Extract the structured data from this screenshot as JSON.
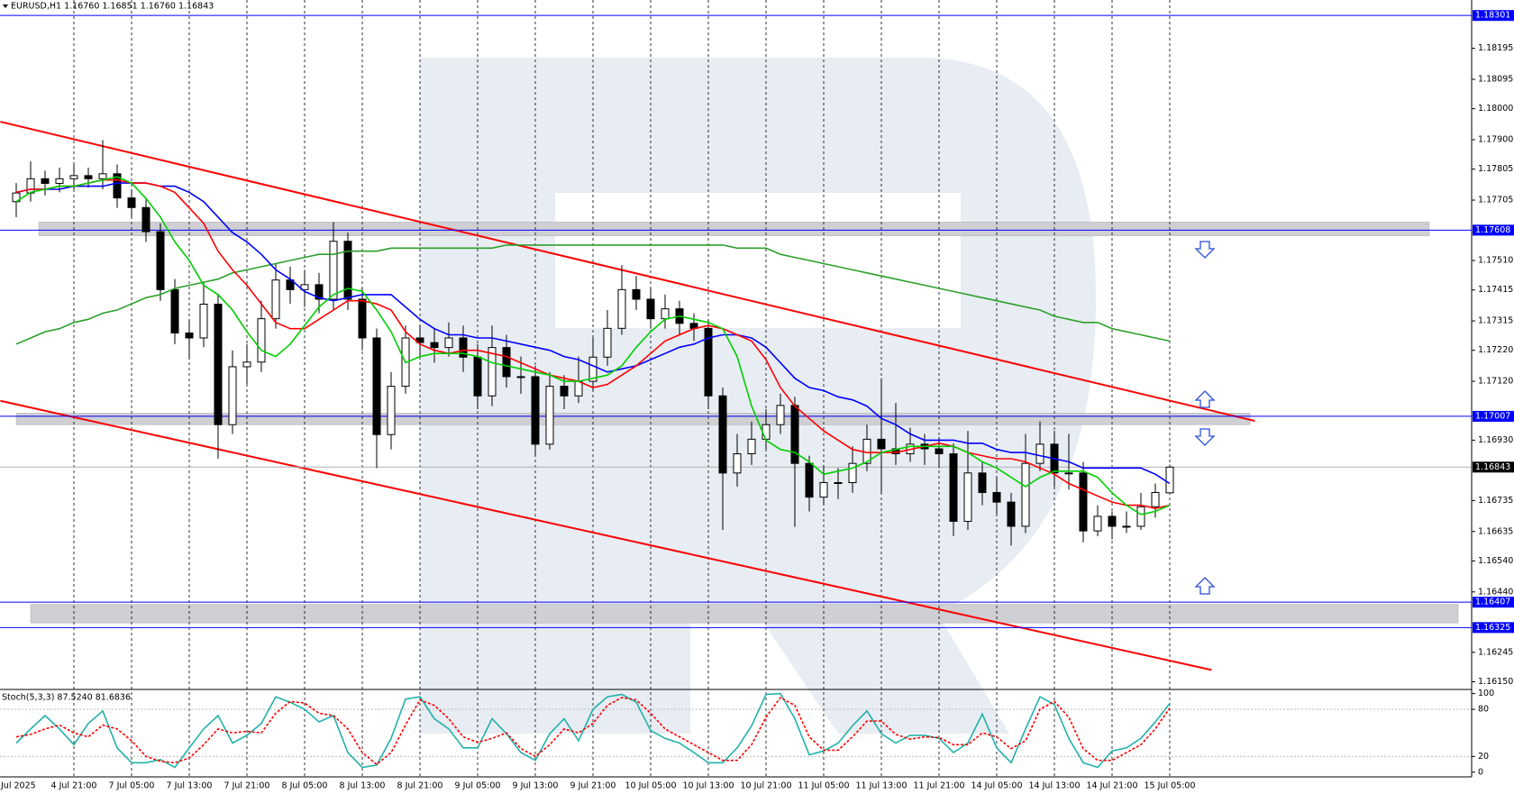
{
  "chart_data": [
    {
      "type": "candlestick",
      "title": "EURUSD,H1 1.16760 1.16851 1.16760 1.16843",
      "categories": [
        "Jul 2025",
        null,
        null,
        null,
        "4 Jul 21:00",
        null,
        null,
        null,
        "7 Jul 05:00",
        null,
        null,
        null,
        "7 Jul 13:00",
        null,
        null,
        null,
        "7 Jul 21:00",
        null,
        null,
        null,
        "8 Jul 05:00",
        null,
        null,
        null,
        "8 Jul 13:00",
        null,
        null,
        null,
        "8 Jul 21:00",
        null,
        null,
        null,
        "9 Jul 05:00",
        null,
        null,
        null,
        "9 Jul 13:00",
        null,
        null,
        null,
        "9 Jul 21:00",
        null,
        null,
        null,
        "10 Jul 05:00",
        null,
        null,
        null,
        "10 Jul 13:00",
        null,
        null,
        null,
        "10 Jul 21:00",
        null,
        null,
        null,
        "11 Jul 05:00",
        null,
        null,
        null,
        "11 Jul 13:00",
        null,
        null,
        null,
        "11 Jul 21:00",
        null,
        null,
        null,
        "14 Jul 05:00",
        null,
        null,
        null,
        "14 Jul 13:00",
        null,
        null,
        null,
        "14 Jul 21:00",
        null,
        null,
        null,
        "15 Jul 05:00"
      ],
      "open": [
        1.177,
        1.17728,
        1.17774,
        1.17759,
        1.17774,
        1.17784,
        1.17774,
        1.1779,
        1.17712,
        1.17681,
        1.17603,
        1.17416,
        1.17276,
        1.1726,
        1.17369,
        1.1698,
        1.17167,
        1.17182,
        1.17322,
        1.17447,
        1.17416,
        1.17432,
        1.17385,
        1.17572,
        1.17385,
        1.1726,
        1.16948,
        1.17104,
        1.1726,
        1.17245,
        1.17229,
        1.1726,
        1.17198,
        1.17073,
        1.17229,
        1.17135,
        1.17135,
        1.16917,
        1.17104,
        1.17073,
        1.1712,
        1.17198,
        1.17291,
        1.17416,
        1.17385,
        1.17322,
        1.17354,
        1.17307,
        1.17291,
        1.17073,
        1.16824,
        1.16886,
        1.16933,
        1.1698,
        1.17042,
        1.16855,
        1.16746,
        1.16793,
        1.16793,
        1.16855,
        1.16933,
        1.16902,
        1.16886,
        1.16917,
        1.16902,
        1.16886,
        1.16668,
        1.16824,
        1.16761,
        1.1673,
        1.16652,
        1.16855,
        1.16917,
        1.16824,
        1.16824,
        1.16637,
        1.16684,
        1.16652,
        1.16652,
        1.16715,
        1.1676
      ],
      "high": [
        1.1776,
        1.1783,
        1.178,
        1.1781,
        1.1782,
        1.1781,
        1.17899,
        1.1782,
        1.1774,
        1.1771,
        1.1763,
        1.1745,
        1.1732,
        1.1744,
        1.174,
        1.1722,
        1.1724,
        1.1738,
        1.175,
        1.1749,
        1.1748,
        1.1747,
        1.17634,
        1.176,
        1.1742,
        1.1729,
        1.1715,
        1.173,
        1.173,
        1.1729,
        1.1731,
        1.173,
        1.1724,
        1.173,
        1.1727,
        1.172,
        1.1717,
        1.1715,
        1.1714,
        1.172,
        1.1726,
        1.1735,
        1.17495,
        1.1746,
        1.1742,
        1.174,
        1.1738,
        1.1734,
        1.1732,
        1.171,
        1.1695,
        1.1699,
        1.1703,
        1.1708,
        1.1707,
        1.1688,
        1.1685,
        1.1684,
        1.1691,
        1.1698,
        1.1713,
        1.1705,
        1.1697,
        1.1695,
        1.1694,
        1.1692,
        1.1696,
        1.1686,
        1.1681,
        1.1676,
        1.1695,
        1.1699,
        1.1696,
        1.1695,
        1.1686,
        1.1672,
        1.167,
        1.167,
        1.1676,
        1.1679,
        1.16851
      ],
      "low": [
        1.1765,
        1.177,
        1.1772,
        1.1773,
        1.1774,
        1.17745,
        1.1774,
        1.1768,
        1.1765,
        1.1757,
        1.1738,
        1.1724,
        1.1719,
        1.1723,
        1.1687,
        1.1695,
        1.1711,
        1.1715,
        1.1729,
        1.1737,
        1.1736,
        1.1734,
        1.1735,
        1.1735,
        1.1722,
        1.1684,
        1.169,
        1.1708,
        1.172,
        1.1718,
        1.172,
        1.1715,
        1.1703,
        1.1704,
        1.171,
        1.1708,
        1.1688,
        1.169,
        1.1703,
        1.1705,
        1.1709,
        1.1717,
        1.1727,
        1.1735,
        1.1729,
        1.1729,
        1.1727,
        1.1725,
        1.1703,
        1.1664,
        1.1678,
        1.1685,
        1.169,
        1.1695,
        1.1665,
        1.167,
        1.1672,
        1.1674,
        1.1676,
        1.1683,
        1.1676,
        1.1685,
        1.1686,
        1.1685,
        1.1684,
        1.1662,
        1.1664,
        1.1672,
        1.1669,
        1.1659,
        1.1663,
        1.1683,
        1.1678,
        1.1677,
        1.166,
        1.1662,
        1.1661,
        1.1663,
        1.1664,
        1.1668,
        1.1676
      ],
      "close": [
        1.17728,
        1.17774,
        1.17759,
        1.17774,
        1.17784,
        1.17774,
        1.1779,
        1.17712,
        1.17681,
        1.17603,
        1.17416,
        1.17276,
        1.1726,
        1.17369,
        1.1698,
        1.17167,
        1.17182,
        1.17322,
        1.17447,
        1.17416,
        1.17432,
        1.17385,
        1.17572,
        1.17385,
        1.1726,
        1.16948,
        1.17104,
        1.1726,
        1.17245,
        1.17229,
        1.1726,
        1.17198,
        1.17073,
        1.17229,
        1.17135,
        1.17135,
        1.16917,
        1.17104,
        1.17073,
        1.1712,
        1.17198,
        1.17291,
        1.17416,
        1.17385,
        1.17322,
        1.17354,
        1.17307,
        1.17291,
        1.17073,
        1.16824,
        1.16886,
        1.16933,
        1.1698,
        1.17042,
        1.16855,
        1.16746,
        1.16793,
        1.16793,
        1.16855,
        1.16933,
        1.16902,
        1.16886,
        1.16917,
        1.16902,
        1.16886,
        1.16668,
        1.16824,
        1.16761,
        1.1673,
        1.16652,
        1.16855,
        1.16917,
        1.16824,
        1.16824,
        1.16637,
        1.16684,
        1.16652,
        1.16652,
        1.16715,
        1.16761,
        1.16843
      ],
      "up_color": "#ffffff",
      "down_color": "#000000",
      "moving_averages": [
        {
          "color": "#2ca02c",
          "values": [
            1.1724,
            1.1726,
            1.1728,
            1.1729,
            1.1731,
            1.1732,
            1.1734,
            1.1735,
            1.1737,
            1.1739,
            1.174,
            1.1742,
            1.1743,
            1.1744,
            1.1745,
            1.1747,
            1.1748,
            1.1749,
            1.175,
            1.1751,
            1.1752,
            1.1753,
            1.1753,
            1.1754,
            1.1754,
            1.1754,
            1.1755,
            1.1755,
            1.1755,
            1.1755,
            1.1755,
            1.1755,
            1.1755,
            1.1755,
            1.1756,
            1.1756,
            1.1756,
            1.1756,
            1.1756,
            1.1756,
            1.1756,
            1.1756,
            1.1756,
            1.1756,
            1.1756,
            1.1756,
            1.1756,
            1.1756,
            1.1756,
            1.1756,
            1.1755,
            1.1755,
            1.1755,
            1.1753,
            1.1752,
            1.1751,
            1.175,
            1.1749,
            1.1748,
            1.1747,
            1.1746,
            1.1745,
            1.1744,
            1.1743,
            1.1742,
            1.1741,
            1.174,
            1.1739,
            1.1738,
            1.1737,
            1.1736,
            1.1735,
            1.1733,
            1.1732,
            1.1731,
            1.1731,
            1.1729,
            1.1728,
            1.1727,
            1.1726,
            1.1725
          ]
        },
        {
          "color": "#0000ff",
          "values": [
            1.1773,
            1.1774,
            1.1774,
            1.1774,
            1.1775,
            1.1775,
            1.1775,
            1.1776,
            1.1776,
            1.1776,
            1.1775,
            1.1775,
            1.1773,
            1.177,
            1.1765,
            1.176,
            1.1757,
            1.1753,
            1.1748,
            1.1745,
            1.1741,
            1.1739,
            1.1738,
            1.1739,
            1.174,
            1.174,
            1.174,
            1.1736,
            1.1732,
            1.1729,
            1.1727,
            1.1727,
            1.1726,
            1.1726,
            1.1725,
            1.1724,
            1.1723,
            1.1722,
            1.172,
            1.1719,
            1.1717,
            1.1715,
            1.1716,
            1.1717,
            1.1719,
            1.1721,
            1.1723,
            1.1724,
            1.1726,
            1.1727,
            1.1727,
            1.1726,
            1.1723,
            1.1718,
            1.1713,
            1.171,
            1.1709,
            1.1707,
            1.1706,
            1.1704,
            1.17,
            1.1698,
            1.1695,
            1.1693,
            1.1693,
            1.1693,
            1.1692,
            1.1692,
            1.169,
            1.1689,
            1.1689,
            1.1688,
            1.1687,
            1.1686,
            1.1684,
            1.1684,
            1.1684,
            1.1684,
            1.1684,
            1.1682,
            1.1679
          ]
        },
        {
          "color": "#ff0000",
          "values": [
            1.1773,
            1.1774,
            1.1774,
            1.1775,
            1.1775,
            1.1776,
            1.1777,
            1.1777,
            1.1776,
            1.1776,
            1.1775,
            1.1773,
            1.1768,
            1.1763,
            1.1754,
            1.1748,
            1.1743,
            1.1737,
            1.1731,
            1.1729,
            1.1729,
            1.1732,
            1.1735,
            1.1738,
            1.1738,
            1.1737,
            1.1735,
            1.1728,
            1.1724,
            1.1722,
            1.1721,
            1.1722,
            1.1722,
            1.1721,
            1.172,
            1.1718,
            1.1716,
            1.1714,
            1.1713,
            1.1712,
            1.171,
            1.1711,
            1.1714,
            1.1717,
            1.1721,
            1.1725,
            1.1727,
            1.1729,
            1.173,
            1.1729,
            1.1727,
            1.1725,
            1.1719,
            1.171,
            1.1704,
            1.17,
            1.1696,
            1.1693,
            1.169,
            1.1689,
            1.1689,
            1.1689,
            1.169,
            1.1691,
            1.1692,
            1.1691,
            1.1689,
            1.1688,
            1.1687,
            1.1687,
            1.1686,
            1.1684,
            1.1682,
            1.1679,
            1.1677,
            1.1675,
            1.1673,
            1.1672,
            1.1672,
            1.1671,
            1.1672
          ]
        },
        {
          "color": "#00d000",
          "values": [
            1.177,
            1.1773,
            1.1774,
            1.1775,
            1.1775,
            1.1776,
            1.1777,
            1.1778,
            1.1776,
            1.1771,
            1.1765,
            1.1757,
            1.1751,
            1.1743,
            1.174,
            1.1735,
            1.1728,
            1.1722,
            1.172,
            1.1724,
            1.173,
            1.1736,
            1.174,
            1.1742,
            1.1741,
            1.1735,
            1.1728,
            1.1718,
            1.172,
            1.1721,
            1.1721,
            1.1721,
            1.172,
            1.1718,
            1.1717,
            1.1716,
            1.1715,
            1.1714,
            1.1712,
            1.1712,
            1.1713,
            1.1714,
            1.1717,
            1.1723,
            1.1728,
            1.1732,
            1.1733,
            1.1732,
            1.1731,
            1.1729,
            1.172,
            1.1704,
            1.1693,
            1.169,
            1.1689,
            1.1686,
            1.1682,
            1.1683,
            1.1684,
            1.1686,
            1.1689,
            1.169,
            1.1691,
            1.1691,
            1.1691,
            1.1691,
            1.1689,
            1.1686,
            1.1684,
            1.1681,
            1.1678,
            1.1681,
            1.1683,
            1.1683,
            1.1683,
            1.1681,
            1.1676,
            1.1672,
            1.1669,
            1.167,
            1.1672
          ]
        }
      ],
      "ylim": [
        1.16131,
        1.18351
      ],
      "yticks": [
        1.18195,
        1.18095,
        {
          "value": 1.18,
          "label": "1.18000"
        },
        {
          "value": 1.179,
          "label": "1.17900"
        },
        1.17805,
        1.17705,
        {
          "value": 1.1751,
          "label": "1.17510"
        },
        1.17415,
        1.17315,
        {
          "value": 1.1722,
          "label": "1.17220"
        },
        {
          "value": 1.1712,
          "label": "1.17120"
        },
        {
          "value": 1.1693,
          "label": "1.16930"
        },
        1.16735,
        1.16635,
        {
          "value": 1.1654,
          "label": "1.16540"
        },
        {
          "value": 1.1644,
          "label": "1.16440"
        },
        1.16245,
        {
          "value": 1.1615,
          "label": "1.16150"
        }
      ],
      "grid": true,
      "levels": [
        1.18301,
        1.17608,
        1.17007,
        1.16407,
        1.16325
      ],
      "level_color": "#0000ff",
      "last_price": 1.16843,
      "last_price_color": "#000000",
      "zones": [
        {
          "low": 1.1759,
          "high": 1.17634
        },
        {
          "low": 1.1698,
          "high": 1.17017
        },
        {
          "low": 1.1634,
          "high": 1.164
        }
      ],
      "zone_color": "#cfcfd4",
      "trend_lines": [
        {
          "x": [
            -1.1,
            85.9
          ],
          "y": [
            1.17958,
            1.16992
          ],
          "color": "#ff0000"
        },
        {
          "x": [
            -1.1,
            82.9
          ],
          "y": [
            1.17057,
            1.16188
          ],
          "color": "#ff0000"
        }
      ]
    },
    {
      "type": "line",
      "title": "Stoch(5,3,3) 87.5240 81.6836",
      "ylim": [
        -6,
        103
      ],
      "yticks": [
        100,
        80,
        20,
        0
      ],
      "levels": [
        80,
        20
      ],
      "series": [
        {
          "color": "#20b2aa",
          "style": "solid",
          "values": [
            37,
            55,
            72,
            55,
            35,
            62,
            78,
            31,
            12,
            12,
            16,
            6,
            31,
            55,
            72,
            37,
            47,
            62,
            96,
            89,
            80,
            64,
            72,
            25,
            6,
            9,
            43,
            93,
            96,
            68,
            55,
            31,
            31,
            68,
            49,
            25,
            15,
            49,
            68,
            40,
            80,
            96,
            99,
            89,
            53,
            43,
            37,
            25,
            12,
            12,
            31,
            59,
            99,
            100,
            68,
            22,
            27,
            37,
            59,
            78,
            49,
            37,
            47,
            47,
            43,
            25,
            37,
            74,
            31,
            12,
            55,
            96,
            86,
            43,
            12,
            6,
            27,
            31,
            43,
            64,
            87.524
          ]
        },
        {
          "color": "#ff0000",
          "style": "dashed",
          "values": [
            45,
            48,
            55,
            60,
            50,
            45,
            60,
            55,
            40,
            20,
            14,
            12,
            18,
            35,
            55,
            50,
            52,
            50,
            75,
            90,
            88,
            75,
            72,
            55,
            25,
            10,
            25,
            60,
            92,
            85,
            68,
            45,
            38,
            43,
            50,
            30,
            20,
            35,
            55,
            50,
            62,
            85,
            95,
            92,
            75,
            55,
            45,
            35,
            25,
            15,
            15,
            35,
            70,
            95,
            85,
            45,
            28,
            28,
            45,
            65,
            65,
            48,
            42,
            45,
            44,
            35,
            35,
            50,
            45,
            30,
            40,
            80,
            90,
            70,
            30,
            15,
            15,
            25,
            35,
            55,
            81.6836
          ]
        }
      ]
    }
  ]
}
